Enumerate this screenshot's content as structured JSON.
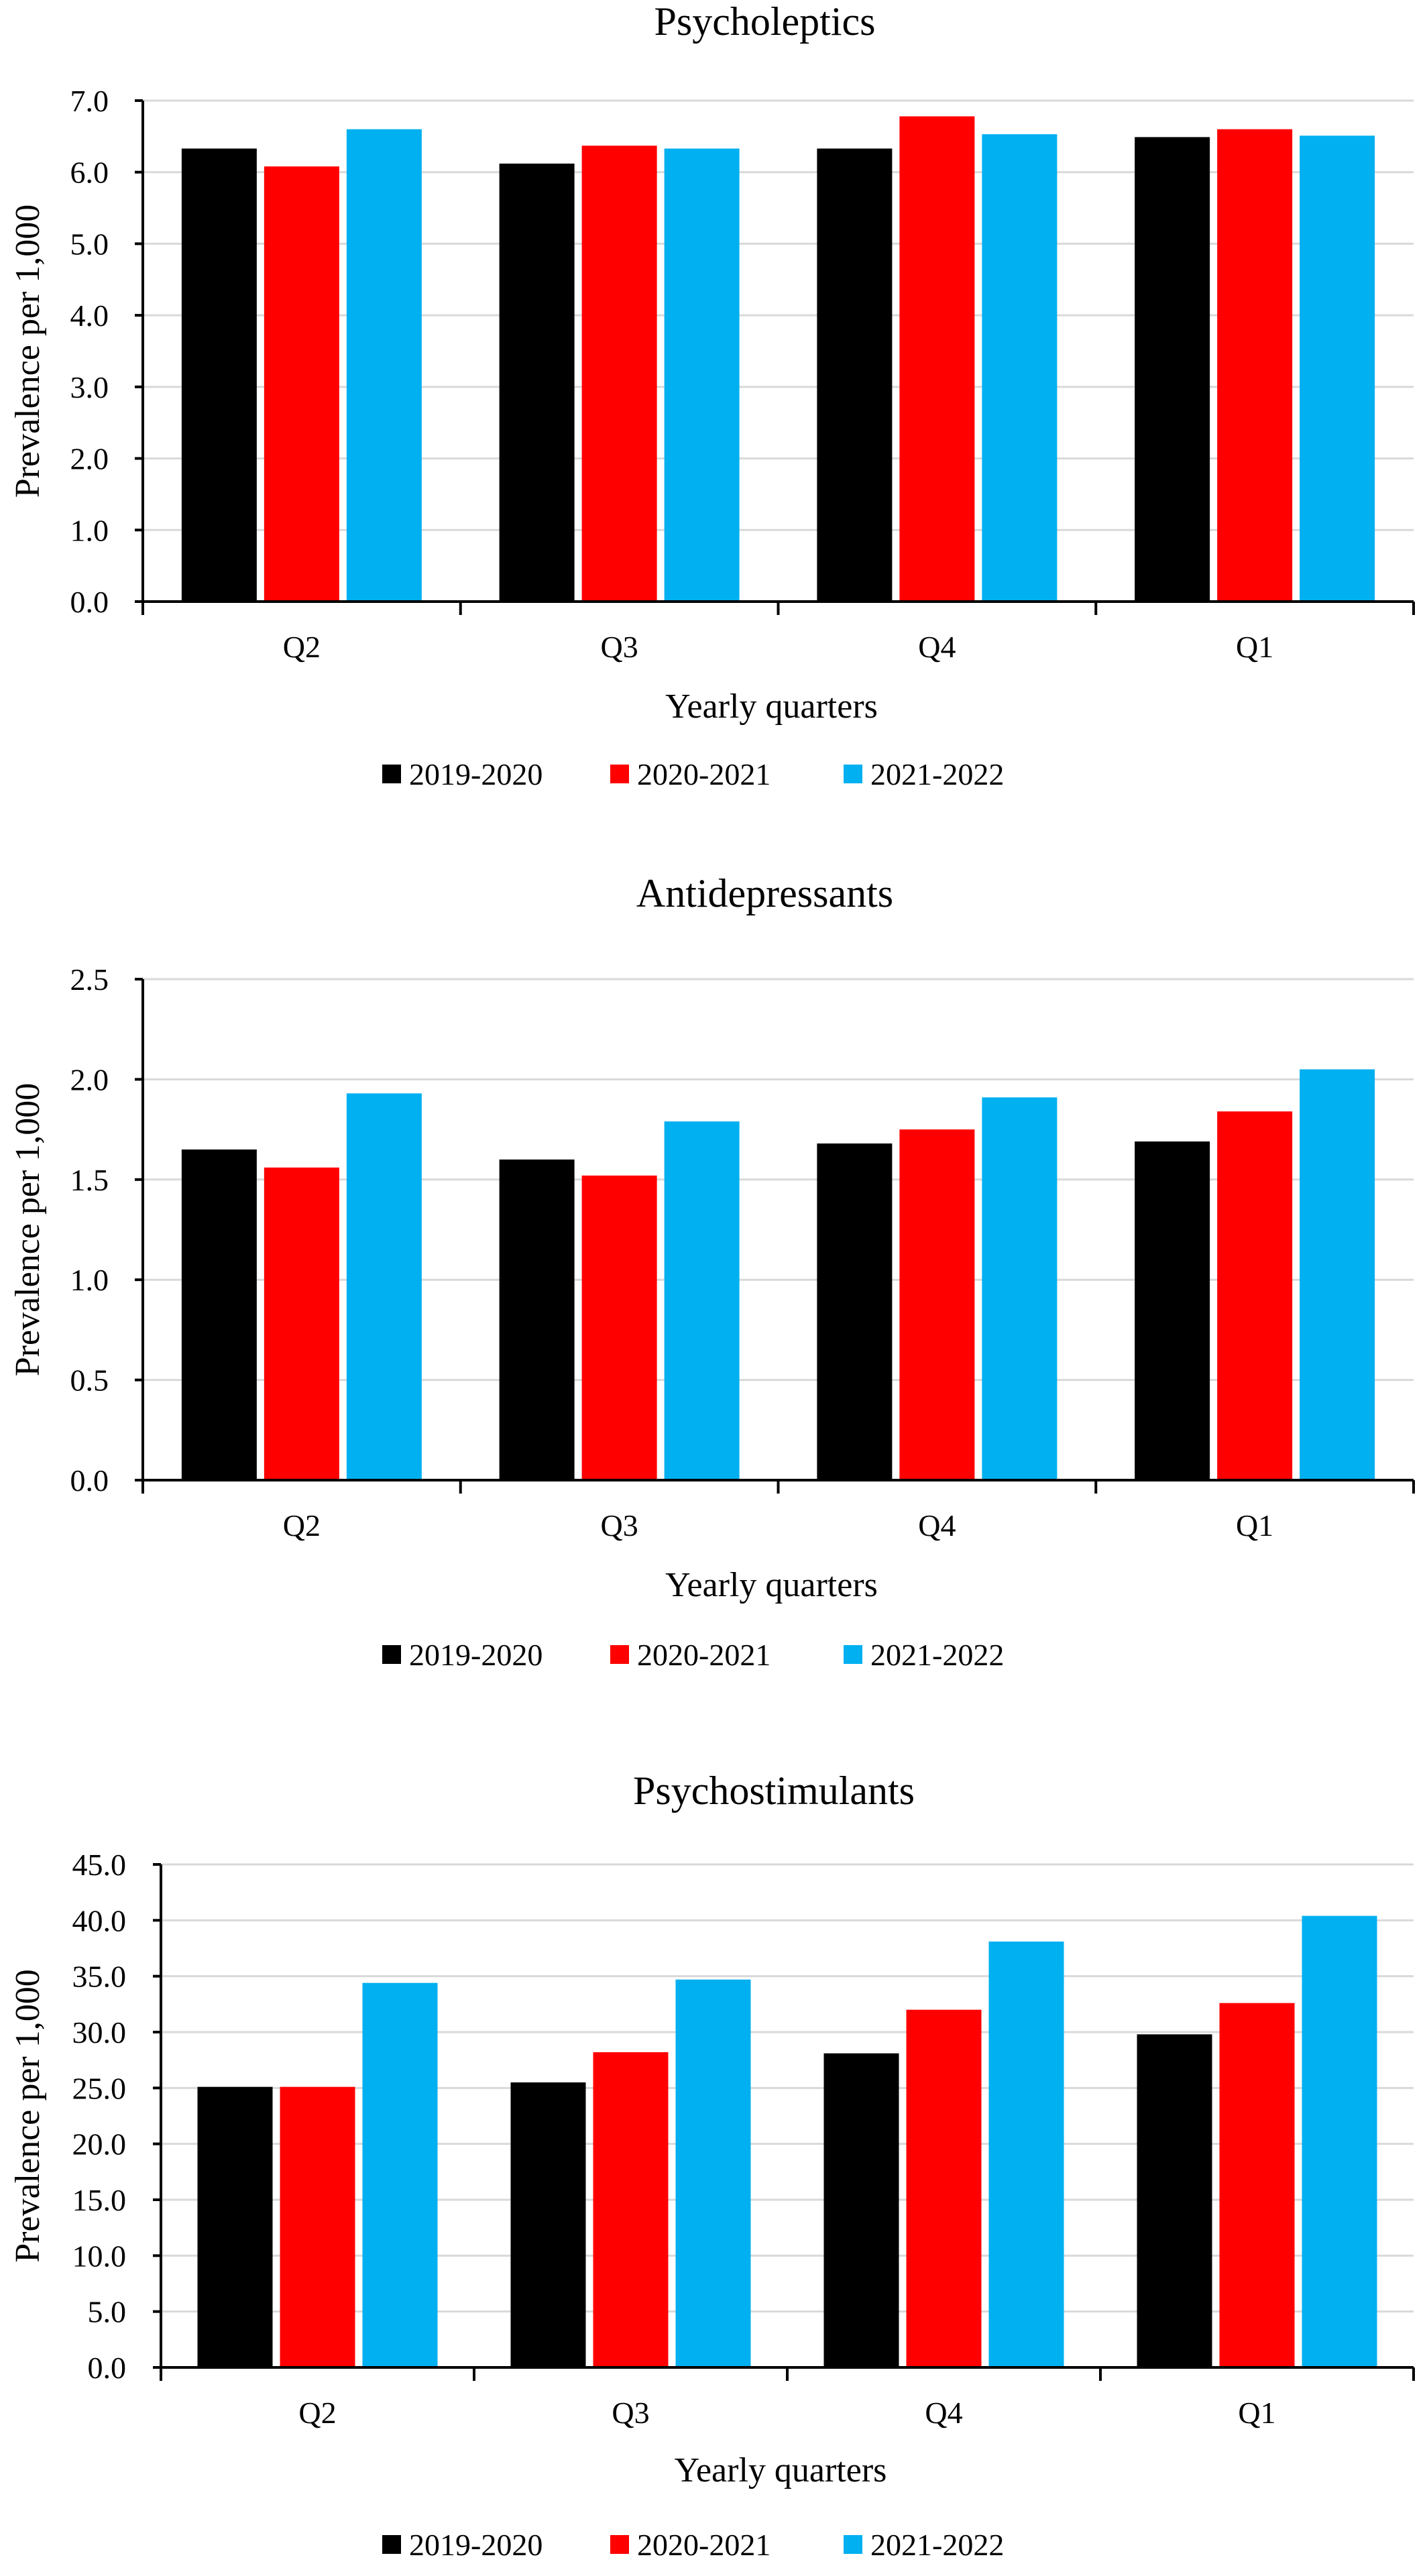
{
  "colors": {
    "2019-2020": "#000000",
    "2020-2021": "#ff0000",
    "2021-2022": "#00b0f0",
    "gridline": "#d9d9d9"
  },
  "chart_data": [
    {
      "type": "bar",
      "title": "Psycholeptics",
      "xlabel": "Yearly quarters",
      "ylabel": "Prevalence per 1,000",
      "categories": [
        "Q2",
        "Q3",
        "Q4",
        "Q1"
      ],
      "ylim": [
        0,
        7
      ],
      "yticks": [
        "0.0",
        "1.0",
        "2.0",
        "3.0",
        "4.0",
        "5.0",
        "6.0",
        "7.0"
      ],
      "grid": true,
      "legend_position": "bottom",
      "series": [
        {
          "name": "2019-2020",
          "color": "#000000",
          "values": [
            6.33,
            6.12,
            6.33,
            6.49
          ]
        },
        {
          "name": "2020-2021",
          "color": "#ff0000",
          "values": [
            6.08,
            6.37,
            6.78,
            6.6
          ]
        },
        {
          "name": "2021-2022",
          "color": "#00b0f0",
          "values": [
            6.6,
            6.33,
            6.53,
            6.51
          ]
        }
      ]
    },
    {
      "type": "bar",
      "title": "Antidepressants",
      "xlabel": "Yearly quarters",
      "ylabel": "Prevalence per 1,000",
      "categories": [
        "Q2",
        "Q3",
        "Q4",
        "Q1"
      ],
      "ylim": [
        0,
        2.5
      ],
      "yticks": [
        "0.0",
        "0.5",
        "1.0",
        "1.5",
        "2.0",
        "2.5"
      ],
      "grid": true,
      "legend_position": "bottom",
      "series": [
        {
          "name": "2019-2020",
          "color": "#000000",
          "values": [
            1.65,
            1.6,
            1.68,
            1.69
          ]
        },
        {
          "name": "2020-2021",
          "color": "#ff0000",
          "values": [
            1.56,
            1.52,
            1.75,
            1.84
          ]
        },
        {
          "name": "2021-2022",
          "color": "#00b0f0",
          "values": [
            1.93,
            1.79,
            1.91,
            2.05
          ]
        }
      ]
    },
    {
      "type": "bar",
      "title": "Psychostimulants",
      "xlabel": "Yearly quarters",
      "ylabel": "Prevalence per 1,000",
      "categories": [
        "Q2",
        "Q3",
        "Q4",
        "Q1"
      ],
      "ylim": [
        0,
        45
      ],
      "yticks": [
        "0.0",
        "5.0",
        "10.0",
        "15.0",
        "20.0",
        "25.0",
        "30.0",
        "35.0",
        "40.0",
        "45.0"
      ],
      "grid": true,
      "legend_position": "bottom",
      "series": [
        {
          "name": "2019-2020",
          "color": "#000000",
          "values": [
            25.1,
            25.5,
            28.1,
            29.8
          ]
        },
        {
          "name": "2020-2021",
          "color": "#ff0000",
          "values": [
            25.1,
            28.2,
            32.0,
            32.6
          ]
        },
        {
          "name": "2021-2022",
          "color": "#00b0f0",
          "values": [
            34.4,
            34.7,
            38.1,
            40.4
          ]
        }
      ]
    }
  ]
}
